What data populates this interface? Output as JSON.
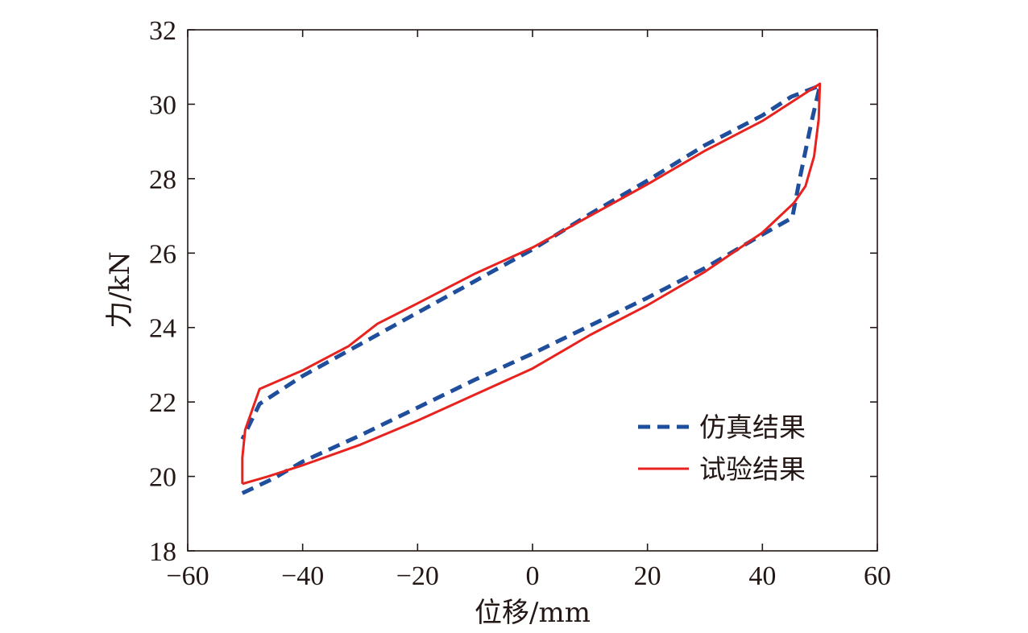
{
  "chart_data": {
    "type": "line",
    "xlabel": "位移/mm",
    "ylabel": "力/kN",
    "xlim": [
      -60,
      60
    ],
    "ylim": [
      18,
      32
    ],
    "xticks": [
      -60,
      -40,
      -20,
      0,
      20,
      40,
      60
    ],
    "yticks": [
      18,
      20,
      22,
      24,
      26,
      28,
      30,
      32
    ],
    "xtick_labels": [
      "−60",
      "−40",
      "−20",
      "0",
      "20",
      "40",
      "60"
    ],
    "ytick_labels": [
      "18",
      "20",
      "22",
      "24",
      "26",
      "28",
      "30",
      "32"
    ],
    "grid": false,
    "legend_position": "lower-right",
    "series": [
      {
        "name": "仿真结果",
        "color": "#1f4e9c",
        "style": "dashed",
        "points": [
          [
            -50.5,
            19.55
          ],
          [
            -45,
            19.95
          ],
          [
            -40,
            20.4
          ],
          [
            -30,
            21.1
          ],
          [
            -20,
            21.85
          ],
          [
            -10,
            22.6
          ],
          [
            0,
            23.3
          ],
          [
            10,
            24.05
          ],
          [
            20,
            24.8
          ],
          [
            30,
            25.6
          ],
          [
            40,
            26.5
          ],
          [
            45.2,
            26.95
          ],
          [
            46.5,
            28
          ],
          [
            48.5,
            29.5
          ],
          [
            50,
            30.5
          ],
          [
            45,
            30.2
          ],
          [
            40,
            29.7
          ],
          [
            30,
            28.9
          ],
          [
            20,
            27.95
          ],
          [
            10,
            27.05
          ],
          [
            0,
            26.1
          ],
          [
            -10,
            25.25
          ],
          [
            -20,
            24.4
          ],
          [
            -30,
            23.55
          ],
          [
            -40,
            22.7
          ],
          [
            -47.5,
            21.95
          ],
          [
            -50.5,
            21.0
          ]
        ]
      },
      {
        "name": "试验结果",
        "color": "#e8221e",
        "style": "solid",
        "points": [
          [
            -50.5,
            19.8
          ],
          [
            -46,
            20.0
          ],
          [
            -40,
            20.3
          ],
          [
            -30,
            20.85
          ],
          [
            -20,
            21.5
          ],
          [
            -10,
            22.2
          ],
          [
            0,
            22.9
          ],
          [
            5,
            23.35
          ],
          [
            10,
            23.8
          ],
          [
            20,
            24.6
          ],
          [
            30,
            25.5
          ],
          [
            40,
            26.55
          ],
          [
            45.5,
            27.35
          ],
          [
            47.5,
            27.8
          ],
          [
            49,
            28.6
          ],
          [
            49.8,
            29.6
          ],
          [
            50,
            30.55
          ],
          [
            45,
            30.05
          ],
          [
            40,
            29.55
          ],
          [
            30,
            28.75
          ],
          [
            20,
            27.85
          ],
          [
            10,
            27.0
          ],
          [
            0,
            26.15
          ],
          [
            -10,
            25.45
          ],
          [
            -20,
            24.65
          ],
          [
            -27,
            24.1
          ],
          [
            -32,
            23.5
          ],
          [
            -40,
            22.85
          ],
          [
            -47.5,
            22.35
          ],
          [
            -50,
            21.25
          ],
          [
            -50.5,
            20.5
          ],
          [
            -50.5,
            19.8
          ]
        ]
      }
    ]
  }
}
